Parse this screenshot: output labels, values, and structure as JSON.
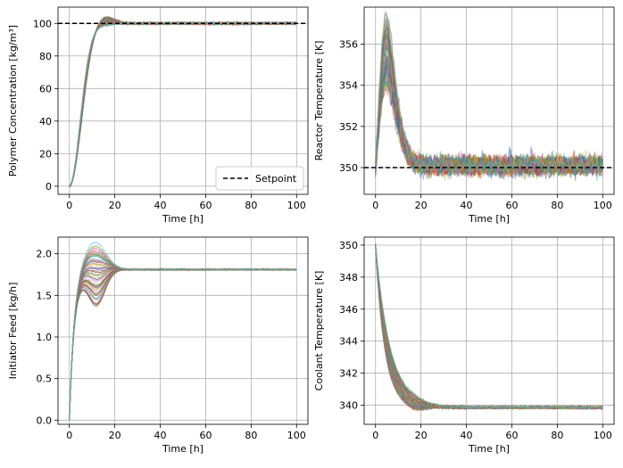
{
  "figure": {
    "layout": "2x2 grid of line charts",
    "style": {
      "background": "#ffffff",
      "grid_color": "#b0b0b0",
      "axis_color": "#000000"
    }
  },
  "chart_data": [
    {
      "id": "polymer",
      "type": "line",
      "title": "",
      "xlabel": "Time [h]",
      "ylabel": "Polymer Concentration [kg/m³]",
      "xlim": [
        -5,
        105
      ],
      "ylim": [
        -5,
        110
      ],
      "xticks": [
        0,
        20,
        40,
        60,
        80,
        100
      ],
      "yticks": [
        0,
        20,
        40,
        60,
        80,
        100
      ],
      "grid": true,
      "n_trajectories": 60,
      "reference_trajectory": {
        "x": [
          0,
          2,
          4,
          6,
          8,
          10,
          12,
          15,
          20,
          25,
          30,
          40,
          60,
          80,
          100
        ],
        "y": [
          0,
          10,
          33,
          55,
          74,
          88,
          95,
          99,
          101,
          101,
          100.5,
          100,
          100,
          100,
          100
        ]
      },
      "spread": {
        "peak_overshoot": 106,
        "min_dip": 94,
        "steady_state": 100
      },
      "setpoint": {
        "value": 100,
        "label": "Setpoint",
        "style": "dashed",
        "color": "#000000"
      },
      "legend": {
        "entries": [
          "Setpoint"
        ],
        "position": "lower-right"
      }
    },
    {
      "id": "reactor",
      "type": "line",
      "title": "",
      "xlabel": "Time [h]",
      "ylabel": "Reactor Temperature [K]",
      "xlim": [
        -5,
        105
      ],
      "ylim": [
        348.7,
        357.8
      ],
      "xticks": [
        0,
        20,
        40,
        60,
        80,
        100
      ],
      "yticks": [
        350,
        352,
        354,
        356
      ],
      "grid": true,
      "n_trajectories": 60,
      "reference_trajectory": {
        "x": [
          0,
          1,
          2,
          3,
          4,
          5,
          6,
          8,
          10,
          12,
          14,
          16,
          18,
          20,
          30,
          60,
          100
        ],
        "y": [
          350,
          351,
          352.5,
          353.8,
          354.6,
          355,
          354.8,
          353.5,
          352.2,
          351.1,
          350.5,
          350.2,
          350.1,
          350.1,
          350.1,
          350.1,
          350.1
        ]
      },
      "spread": {
        "peak_max": 357.5,
        "peak_min": 354.2,
        "noise_band": [
          349.5,
          350.8
        ]
      },
      "setpoint": {
        "value": 350,
        "style": "dashed",
        "color": "#000000"
      }
    },
    {
      "id": "initiator",
      "type": "line",
      "title": "",
      "xlabel": "Time [h]",
      "ylabel": "Initiator Feed [kg/h]",
      "xlim": [
        -5,
        105
      ],
      "ylim": [
        -0.05,
        2.2
      ],
      "xticks": [
        0,
        20,
        40,
        60,
        80,
        100
      ],
      "yticks": [
        "0.0",
        "0.5",
        "1.0",
        "1.5",
        "2.0"
      ],
      "grid": true,
      "n_trajectories": 60,
      "reference_trajectory": {
        "x": [
          0,
          0.5,
          1,
          2,
          3,
          5,
          7,
          10,
          12,
          15,
          20,
          25,
          30,
          40,
          60,
          100
        ],
        "y": [
          0,
          0.3,
          0.8,
          1.1,
          1.35,
          1.6,
          1.8,
          1.95,
          1.97,
          1.95,
          1.9,
          1.85,
          1.83,
          1.81,
          1.81,
          1.81
        ]
      },
      "spread": {
        "peak_max": 2.15,
        "trough_min": 1.45,
        "steady_state": 1.81
      }
    },
    {
      "id": "coolant",
      "type": "line",
      "title": "",
      "xlabel": "Time [h]",
      "ylabel": "Coolant Temperature [K]",
      "xlim": [
        -5,
        105
      ],
      "ylim": [
        338.8,
        350.5
      ],
      "xticks": [
        0,
        20,
        40,
        60,
        80,
        100
      ],
      "yticks": [
        340,
        342,
        344,
        346,
        348,
        350
      ],
      "grid": true,
      "n_trajectories": 60,
      "reference_trajectory": {
        "x": [
          0,
          1,
          2,
          4,
          6,
          8,
          10,
          12,
          14,
          16,
          18,
          20,
          25,
          30,
          40,
          60,
          100
        ],
        "y": [
          350,
          349.4,
          348,
          345.5,
          343.5,
          342.2,
          341.3,
          340.6,
          340.1,
          339.8,
          339.8,
          339.85,
          339.85,
          339.85,
          339.85,
          339.85,
          339.85
        ]
      },
      "spread": {
        "slow_max": 340.5,
        "fast_min": 339.5,
        "steady_state": 339.85
      }
    }
  ]
}
